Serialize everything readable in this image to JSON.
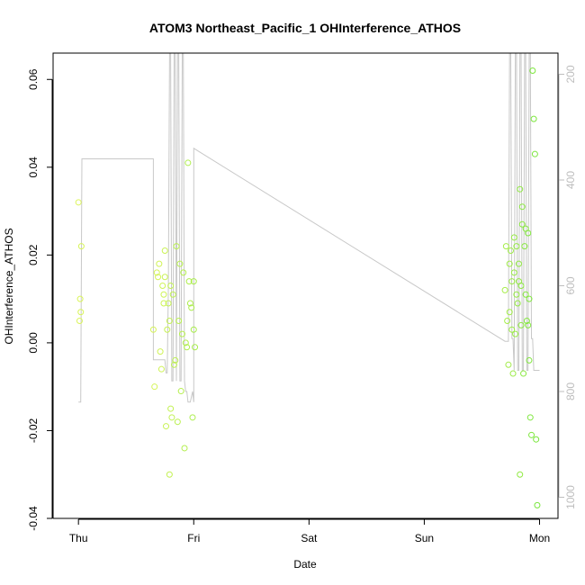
{
  "chart_data": {
    "type": "scatter",
    "title": "ATOM3 Northeast_Pacific_1 OHInterference_ATHOS",
    "xlabel": "Date",
    "ylabel": "OHInterference_ATHOS",
    "x_tick_labels": [
      "Thu",
      "Fri",
      "Sat",
      "Sun",
      "Mon"
    ],
    "x_ticks_days": [
      0,
      1,
      2,
      3,
      4
    ],
    "xlim_days": [
      -0.22,
      4.16
    ],
    "ylim": [
      -0.04,
      0.066
    ],
    "y_ticks": [
      -0.04,
      -0.02,
      0.0,
      0.02,
      0.04,
      0.06
    ],
    "y_tick_labels": [
      "-0.04",
      "-0.02",
      "0.00",
      "0.02",
      "0.04",
      "0.06"
    ],
    "y2_ticks": [
      200,
      400,
      600,
      800,
      1000
    ],
    "y2_tick_labels": [
      "200",
      "400",
      "600",
      "800",
      "1000"
    ],
    "y2lim_reversed": [
      1040,
      160
    ],
    "grid": false,
    "colors": {
      "points_start": "#dcf55a",
      "points_end": "#78e63c",
      "line": "#c8c8c8",
      "frame": "#000000",
      "right_axis": "#bdbdbd"
    },
    "series": [
      {
        "type": "points",
        "x_days": [
          0.0,
          0.01,
          0.015,
          0.02,
          0.025,
          0.65,
          0.66,
          0.68,
          0.69,
          0.7,
          0.71,
          0.72,
          0.73,
          0.74,
          0.74,
          0.75,
          0.75,
          0.76,
          0.77,
          0.78,
          0.79,
          0.79,
          0.8,
          0.8,
          0.81,
          0.82,
          0.83,
          0.84,
          0.85,
          0.86,
          0.87,
          0.88,
          0.89,
          0.9,
          0.91,
          0.92,
          0.93,
          0.94,
          0.95,
          0.96,
          0.97,
          0.98,
          0.99,
          1.0,
          1.0,
          1.01,
          3.7,
          3.71,
          3.72,
          3.73,
          3.74,
          3.74,
          3.75,
          3.76,
          3.76,
          3.77,
          3.78,
          3.78,
          3.79,
          3.8,
          3.8,
          3.81,
          3.82,
          3.82,
          3.83,
          3.83,
          3.84,
          3.84,
          3.85,
          3.85,
          3.86,
          3.87,
          3.88,
          3.88,
          3.89,
          3.9,
          3.9,
          3.91,
          3.91,
          3.92,
          3.93,
          3.94,
          3.95,
          3.96,
          3.97,
          3.98
        ],
        "y": [
          0.032,
          0.005,
          0.01,
          0.007,
          0.022,
          0.003,
          -0.01,
          0.016,
          0.015,
          0.018,
          -0.002,
          -0.006,
          0.013,
          0.011,
          0.009,
          0.021,
          0.015,
          -0.019,
          0.003,
          0.009,
          0.005,
          -0.03,
          -0.015,
          0.013,
          -0.017,
          0.011,
          -0.005,
          -0.004,
          0.022,
          -0.018,
          0.005,
          0.018,
          -0.011,
          0.002,
          0.016,
          -0.024,
          0.0,
          -0.001,
          0.041,
          0.014,
          0.009,
          0.008,
          -0.017,
          0.014,
          0.003,
          -0.001,
          0.012,
          0.022,
          0.005,
          -0.005,
          0.007,
          0.018,
          0.021,
          0.003,
          0.014,
          -0.007,
          0.016,
          0.024,
          0.002,
          0.011,
          0.022,
          0.009,
          0.014,
          0.018,
          -0.03,
          0.035,
          0.004,
          0.013,
          0.027,
          0.031,
          -0.007,
          0.022,
          0.011,
          0.026,
          0.005,
          0.004,
          0.025,
          0.01,
          -0.004,
          -0.017,
          -0.021,
          0.062,
          0.051,
          0.043,
          -0.022,
          -0.037
        ]
      },
      {
        "type": "line",
        "axis": "right",
        "x_days": [
          0.0,
          0.0,
          0.02,
          0.03,
          0.65,
          0.65,
          0.74,
          0.75,
          0.76,
          0.77,
          0.78,
          0.79,
          0.8,
          0.81,
          0.82,
          0.83,
          0.84,
          0.85,
          0.86,
          0.87,
          0.88,
          0.89,
          0.9,
          0.91,
          0.92,
          0.93,
          0.94,
          0.95,
          0.96,
          0.97,
          0.98,
          0.99,
          1.0,
          1.0,
          1.0,
          3.7,
          3.71,
          3.72,
          3.73,
          3.74,
          3.75,
          3.76,
          3.77,
          3.78,
          3.79,
          3.8,
          3.81,
          3.82,
          3.83,
          3.84,
          3.85,
          3.86,
          3.87,
          3.88,
          3.89,
          3.9,
          3.91,
          3.92,
          3.93,
          3.94,
          3.95,
          3.96,
          3.97,
          3.98,
          3.99,
          4.0
        ],
        "y": [
          820,
          820,
          820,
          360,
          360,
          740,
          740,
          740,
          765,
          765,
          600,
          160,
          160,
          780,
          780,
          160,
          160,
          780,
          160,
          160,
          780,
          780,
          160,
          160,
          780,
          800,
          800,
          820,
          820,
          820,
          810,
          800,
          820,
          820,
          340,
          705,
          705,
          705,
          705,
          160,
          160,
          700,
          700,
          760,
          160,
          160,
          760,
          760,
          160,
          160,
          760,
          760,
          160,
          160,
          760,
          760,
          160,
          160,
          700,
          700,
          760,
          760,
          760,
          760,
          760,
          760
        ]
      }
    ]
  }
}
